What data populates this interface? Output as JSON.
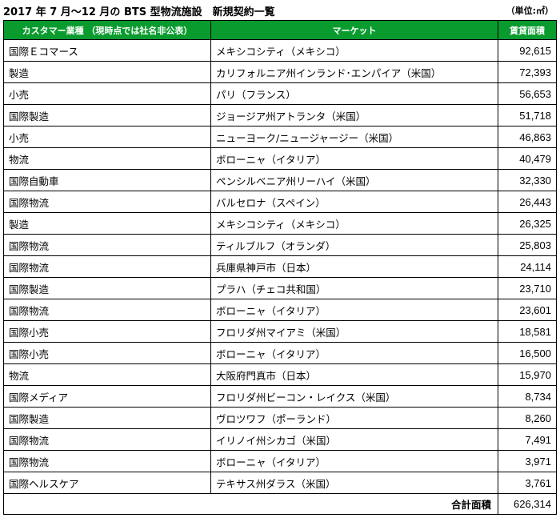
{
  "title": "2017 年 7 月～12 月の BTS 型物流施設　新規契約一覧",
  "unit": "（単位:㎡）",
  "columns": {
    "category": "カスタマー業種 （現時点では社名非公表）",
    "market": "マーケット",
    "area": "賃貸面積"
  },
  "rows": [
    {
      "category": "国際Ｅコマース",
      "market": "メキシコシティ（メキシコ）",
      "area": "92,615"
    },
    {
      "category": "製造",
      "market": "カリフォルニア州インランド･エンパイア（米国）",
      "area": "72,393"
    },
    {
      "category": "小売",
      "market": "パリ（フランス）",
      "area": "56,653"
    },
    {
      "category": "国際製造",
      "market": "ジョージア州アトランタ（米国）",
      "area": "51,718"
    },
    {
      "category": "小売",
      "market": "ニューヨーク/ニュージャージー（米国）",
      "area": "46,863"
    },
    {
      "category": "物流",
      "market": "ボローニャ（イタリア）",
      "area": "40,479"
    },
    {
      "category": "国際自動車",
      "market": "ペンシルベニア州リーハイ（米国）",
      "area": "32,330"
    },
    {
      "category": "国際物流",
      "market": "バルセロナ（スペイン）",
      "area": "26,443"
    },
    {
      "category": "製造",
      "market": "メキシコシティ（メキシコ）",
      "area": "26,325"
    },
    {
      "category": "国際物流",
      "market": "ティルブルフ（オランダ）",
      "area": "25,803"
    },
    {
      "category": "国際物流",
      "market": "兵庫県神戸市（日本）",
      "area": "24,114"
    },
    {
      "category": "国際製造",
      "market": "プラハ（チェコ共和国）",
      "area": "23,710"
    },
    {
      "category": "国際物流",
      "market": "ボローニャ（イタリア）",
      "area": "23,601"
    },
    {
      "category": "国際小売",
      "market": "フロリダ州マイアミ（米国）",
      "area": "18,581"
    },
    {
      "category": "国際小売",
      "market": "ボローニャ（イタリア）",
      "area": "16,500"
    },
    {
      "category": "物流",
      "market": "大阪府門真市（日本）",
      "area": "15,970"
    },
    {
      "category": "国際メディア",
      "market": "フロリダ州ビーコン・レイクス（米国）",
      "area": "8,734"
    },
    {
      "category": "国際製造",
      "market": "ヴロツワフ（ポーランド）",
      "area": "8,260"
    },
    {
      "category": "国際物流",
      "market": "イリノイ州シカゴ（米国）",
      "area": "7,491"
    },
    {
      "category": "国際物流",
      "market": "ボローニャ（イタリア）",
      "area": "3,971"
    },
    {
      "category": "国際ヘルスケア",
      "market": "テキサス州ダラス（米国）",
      "area": "3,761"
    }
  ],
  "total": {
    "label": "合計面積",
    "value": "626,314"
  },
  "colors": {
    "header_bg": "#0a9b2f",
    "header_text": "#ffffff"
  }
}
